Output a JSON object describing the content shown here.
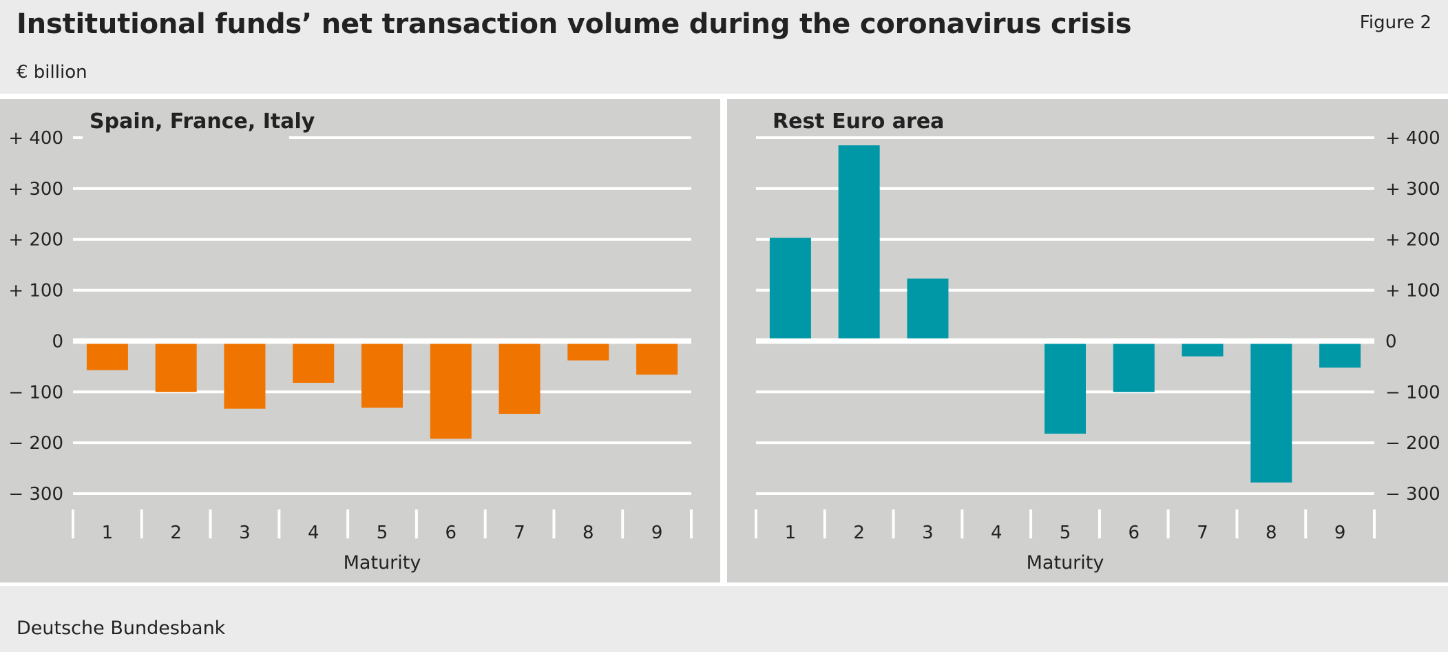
{
  "title": "Institutional funds’ net transaction volume during the coronavirus crisis",
  "figure_label": "Figure 2",
  "unit": "€ billion",
  "source": "Deutsche Bundesbank",
  "colors": {
    "panel_bg": "#d0d0ce",
    "page_bg": "#ebebeb",
    "grid": "#ffffff",
    "series_left": "#f07400",
    "series_right": "#0097a7"
  },
  "chart_data": [
    {
      "type": "bar",
      "title": "Spain, France, Italy",
      "xlabel": "Maturity",
      "ylabel": "",
      "categories": [
        "1",
        "2",
        "3",
        "4",
        "5",
        "6",
        "7",
        "8",
        "9"
      ],
      "values": [
        -57,
        -100,
        -133,
        -82,
        -131,
        -192,
        -143,
        -38,
        -66
      ],
      "ylim": [
        -300,
        400
      ],
      "yticks": [
        "+ 400",
        "+ 300",
        "+ 200",
        "+ 100",
        "0",
        "− 100",
        "− 200",
        "− 300"
      ],
      "ytick_values": [
        400,
        300,
        200,
        100,
        0,
        -100,
        -200,
        -300
      ],
      "axis_side": "left",
      "grid": true
    },
    {
      "type": "bar",
      "title": "Rest Euro area",
      "xlabel": "Maturity",
      "ylabel": "",
      "categories": [
        "1",
        "2",
        "3",
        "4",
        "5",
        "6",
        "7",
        "8",
        "9"
      ],
      "values": [
        203,
        385,
        123,
        0,
        -182,
        -100,
        -30,
        -278,
        -52
      ],
      "ylim": [
        -300,
        400
      ],
      "yticks": [
        "+ 400",
        "+ 300",
        "+ 200",
        "+ 100",
        "0",
        "− 100",
        "− 200",
        "− 300"
      ],
      "ytick_values": [
        400,
        300,
        200,
        100,
        0,
        -100,
        -200,
        -300
      ],
      "axis_side": "right",
      "grid": true
    }
  ]
}
